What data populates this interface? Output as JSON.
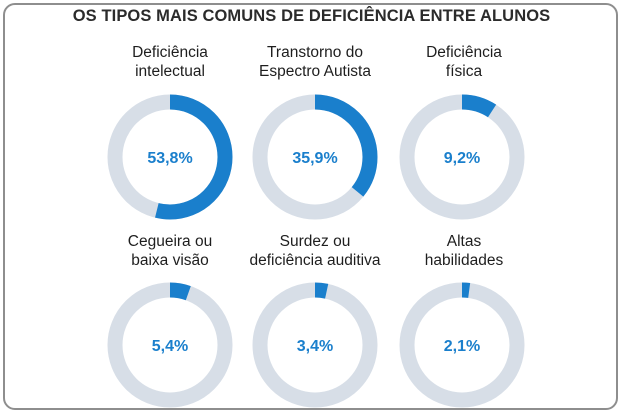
{
  "title": "OS TIPOS MAIS COMUNS DE DEFICIÊNCIA ENTRE ALUNOS",
  "colors": {
    "accent": "#1a7fcc",
    "track": "#d7dee7",
    "border": "#8e8e8e"
  },
  "chart_data": {
    "type": "donut",
    "title": "OS TIPOS MAIS COMUNS DE DEFICIÊNCIA ENTRE ALUNOS",
    "items": [
      {
        "label_lines": [
          "Deficiência",
          "intelectual"
        ],
        "value": 53.8,
        "value_label": "53,8%"
      },
      {
        "label_lines": [
          "Transtorno do",
          "Espectro Autista"
        ],
        "value": 35.9,
        "value_label": "35,9%"
      },
      {
        "label_lines": [
          "Deficiência",
          "física"
        ],
        "value": 9.2,
        "value_label": "9,2%"
      },
      {
        "label_lines": [
          "Cegueira ou",
          "baixa visão"
        ],
        "value": 5.4,
        "value_label": "5,4%"
      },
      {
        "label_lines": [
          "Surdez ou",
          "deficiência auditiva"
        ],
        "value": 3.4,
        "value_label": "3,4%"
      },
      {
        "label_lines": [
          "Altas",
          "habilidades"
        ],
        "value": 2.1,
        "value_label": "2,1%"
      }
    ]
  }
}
